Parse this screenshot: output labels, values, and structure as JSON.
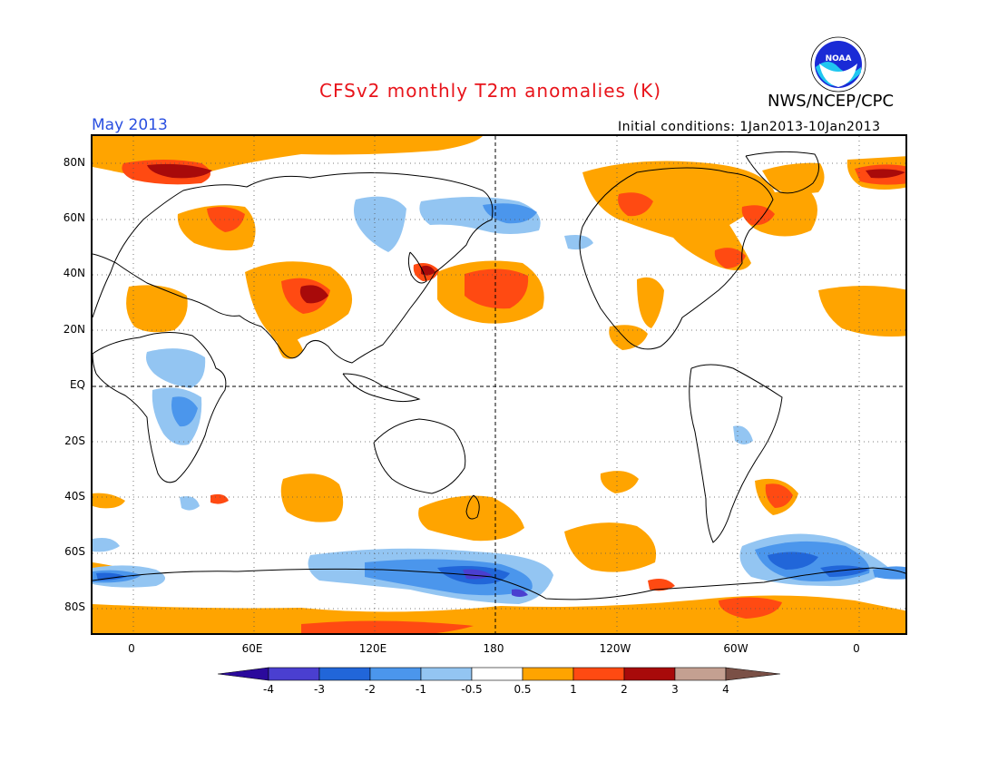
{
  "header": {
    "title": "CFSv2 monthly T2m anomalies (K)",
    "month": "May 2013",
    "agency": "NWS/NCEP/CPC",
    "initial_conditions": "Initial conditions: 1Jan2013-10Jan2013",
    "logo_text": "NOAA"
  },
  "axes": {
    "lat_labels": [
      "80N",
      "60N",
      "40N",
      "20N",
      "EQ",
      "20S",
      "40S",
      "60S",
      "80S"
    ],
    "lon_labels": [
      "0",
      "60E",
      "120E",
      "180",
      "120W",
      "60W",
      "0"
    ]
  },
  "colorbar": {
    "labels": [
      "-4",
      "-3",
      "-2",
      "-1",
      "-0.5",
      "0.5",
      "1",
      "2",
      "3",
      "4"
    ],
    "colors": [
      "#2b0a9c",
      "#4a3fd0",
      "#2166d9",
      "#4b96ec",
      "#93c5f2",
      "#ffffff",
      "#ffa400",
      "#ff4a12",
      "#a80a0a",
      "#c4a091",
      "#7a5046"
    ]
  },
  "colors": {
    "title": "#e8141b",
    "month": "#2a4fe0",
    "warm_1": "#ffa400",
    "warm_2": "#ff4a12",
    "warm_3": "#a80a0a",
    "cool_1": "#93c5f2",
    "cool_2": "#4b96ec",
    "cool_3": "#2166d9",
    "cool_4": "#4a3fd0"
  }
}
